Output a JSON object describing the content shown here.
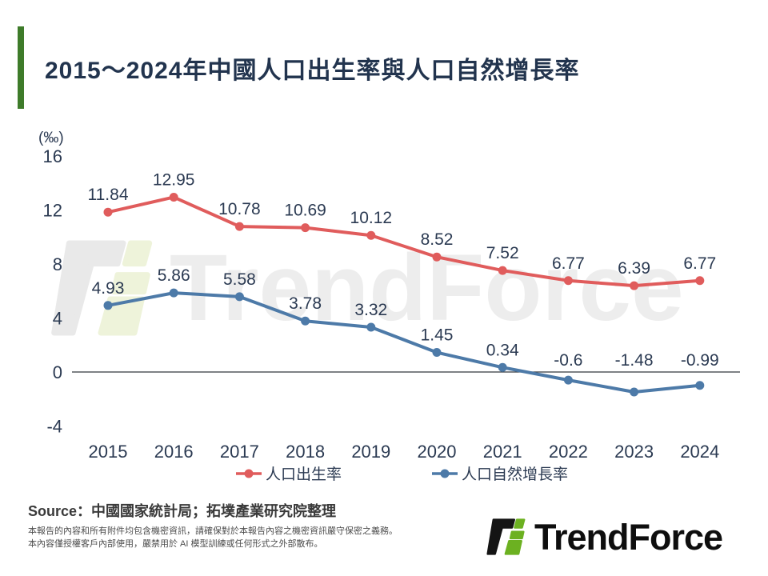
{
  "title": "2015～2024年中國人口出生率與人口自然增長率",
  "source": {
    "label": "Source",
    "text": "：中國國家統計局；拓墣產業研究院整理"
  },
  "confidential_note": {
    "line1": "本報告的內容和所有附件均包含機密資訊，請確保對於本報告內容之機密資訊嚴守保密之義務。",
    "line2": "本內容僅授權客戶內部使用，嚴禁用於 AI 模型訓練或任何形式之外部散布。"
  },
  "brand": {
    "name": "TrendForce",
    "watermark_text": "TrendForce"
  },
  "colors": {
    "accent_green": "#3e7b2a",
    "title_navy": "#22344e",
    "text_navy": "#2b3a52",
    "axis_line": "#33383f",
    "birth_rate_red": "#e05c5c",
    "growth_rate_blue": "#4d7aa8",
    "logo_black": "#141414",
    "logo_green": "#6cb121",
    "watermark_gray": "#e9e9e9",
    "watermark_green": "#eef3da"
  },
  "chart_data": {
    "type": "line",
    "title": "2015～2024年中國人口出生率與人口自然增長率",
    "ylabel": "(‰)",
    "xlabel": "",
    "categories": [
      "2015",
      "2016",
      "2017",
      "2018",
      "2019",
      "2020",
      "2021",
      "2022",
      "2023",
      "2024"
    ],
    "series": [
      {
        "name": "人口出生率",
        "color": "#e05c5c",
        "values": [
          11.84,
          12.95,
          10.78,
          10.69,
          10.12,
          8.52,
          7.52,
          6.77,
          6.39,
          6.77
        ]
      },
      {
        "name": "人口自然增長率",
        "color": "#4d7aa8",
        "values": [
          4.93,
          5.86,
          5.58,
          3.78,
          3.32,
          1.45,
          0.34,
          -0.6,
          -1.48,
          -0.99
        ]
      }
    ],
    "yticks": [
      16,
      12,
      8,
      4,
      0,
      -4
    ],
    "ylim": [
      -5.2,
      18
    ],
    "grid": false,
    "data_labels": true,
    "legend_position": "bottom"
  }
}
